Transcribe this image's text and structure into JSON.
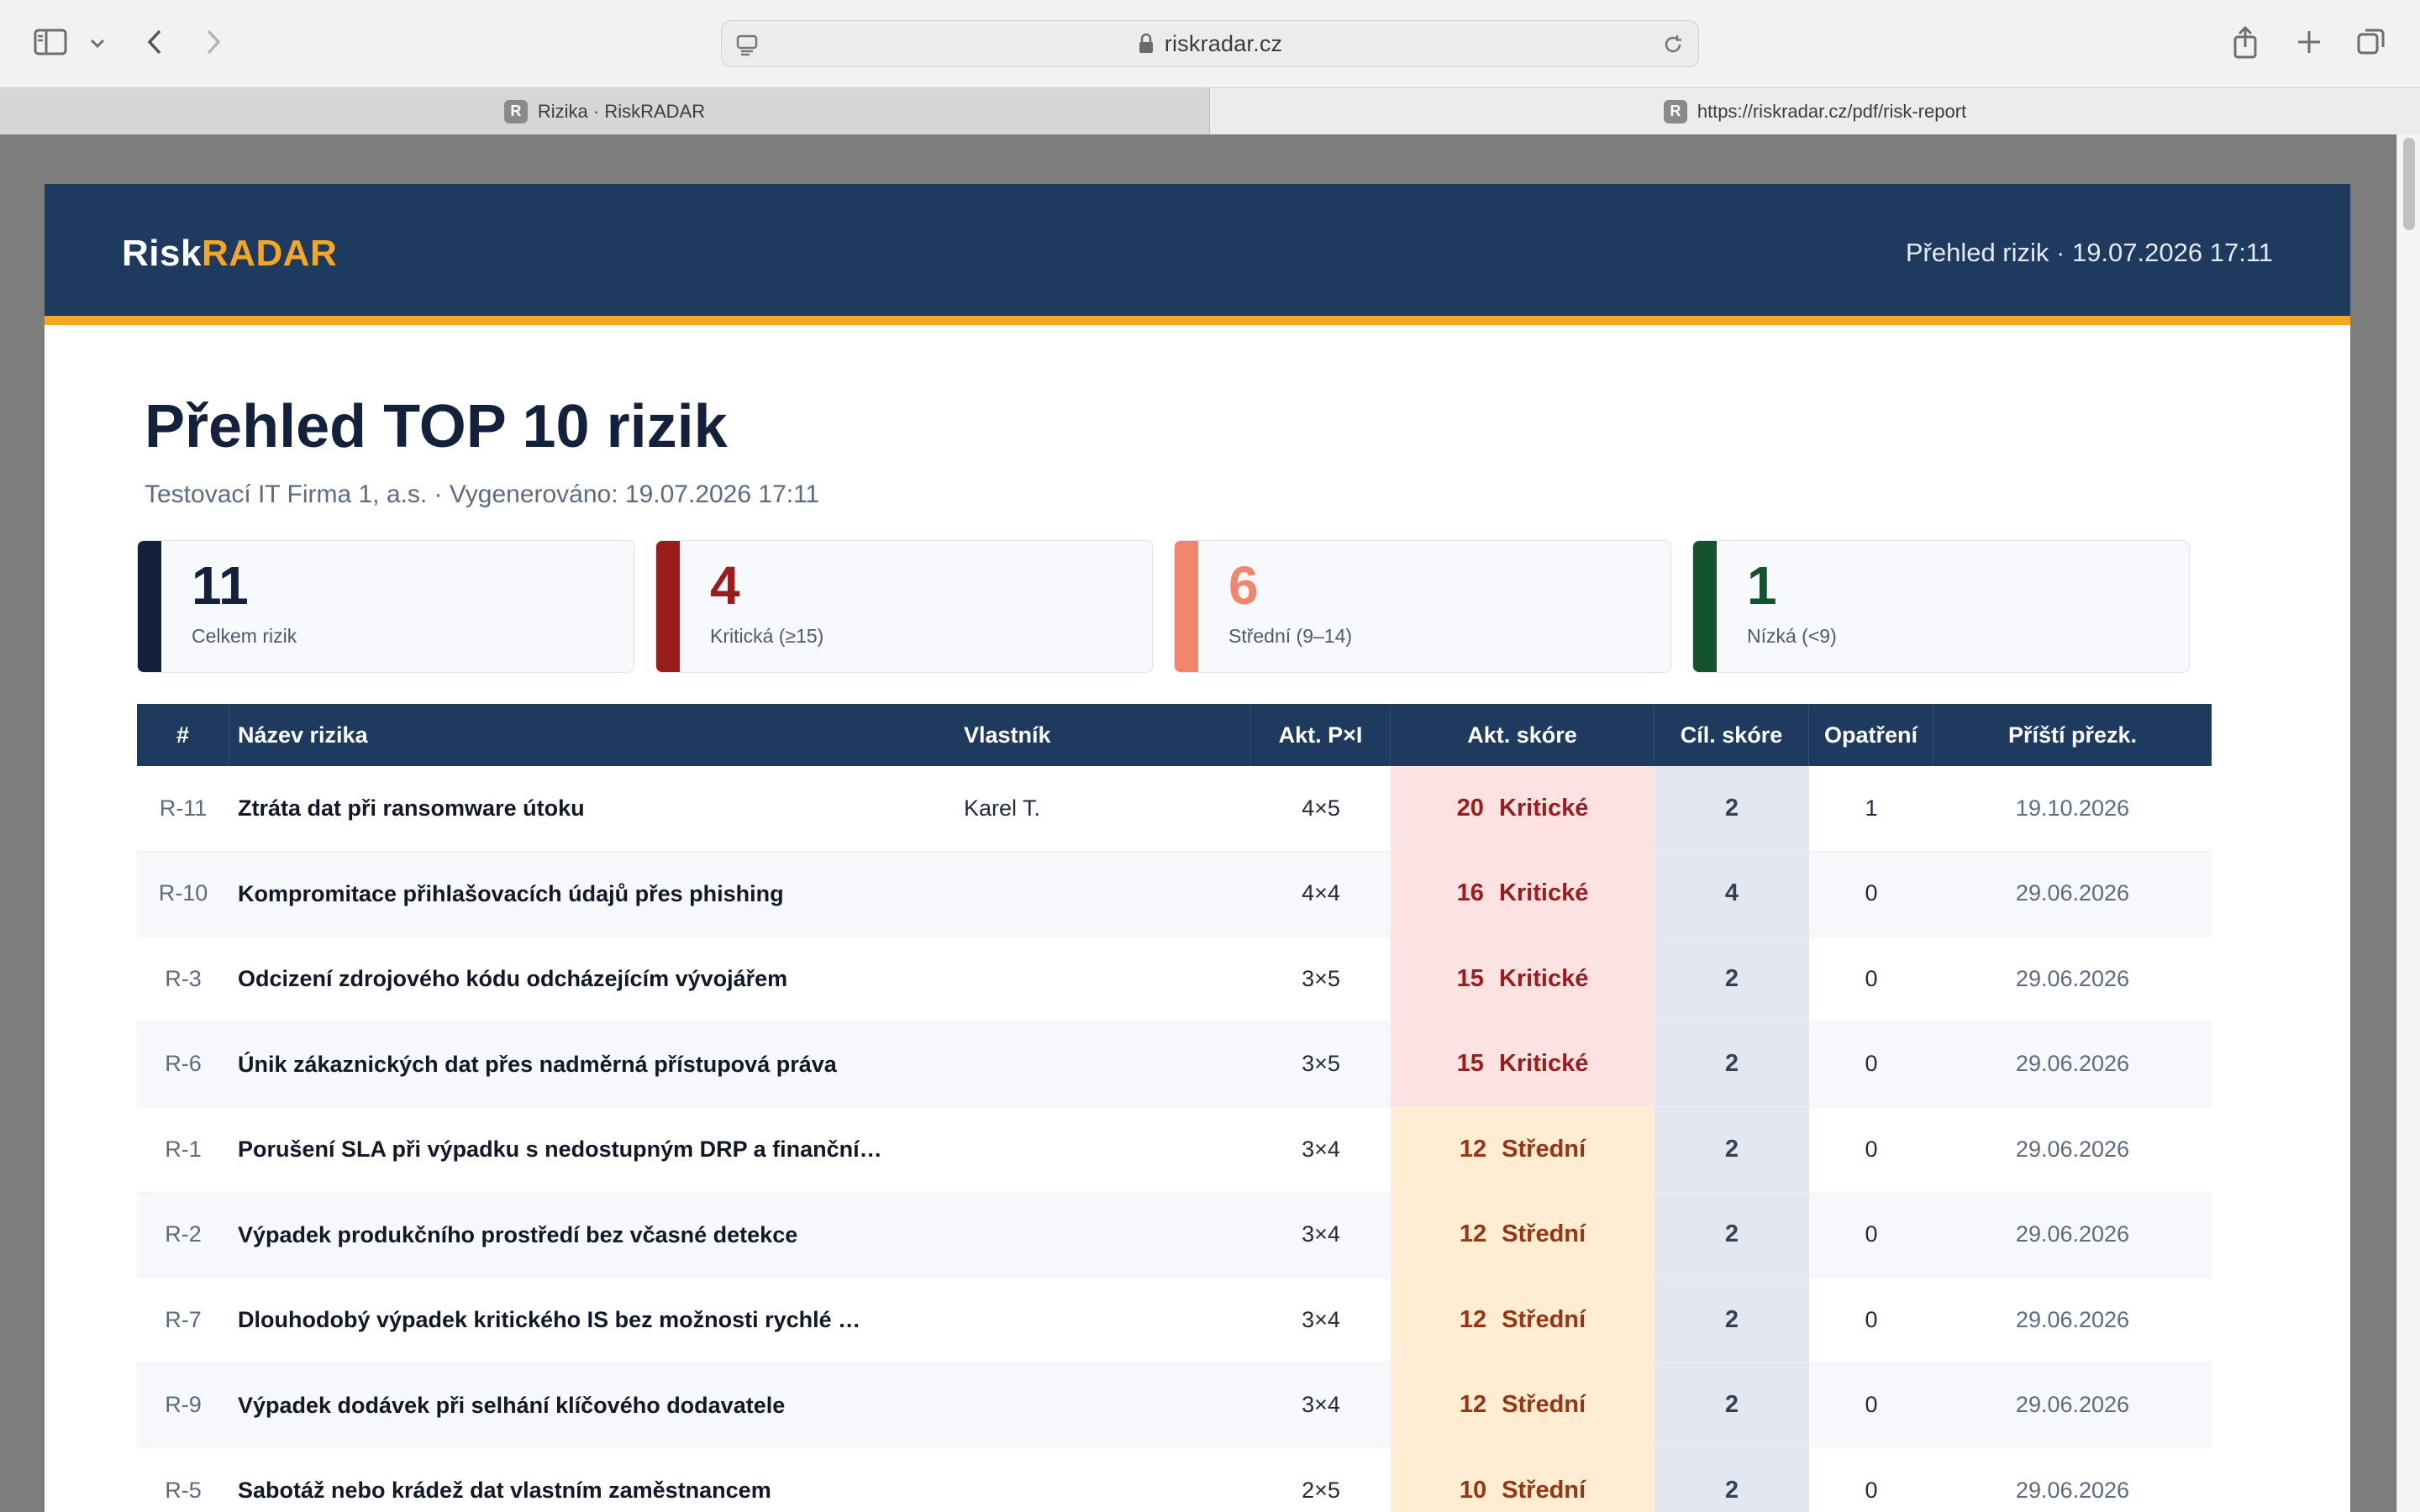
{
  "browser": {
    "url": "riskradar.cz",
    "tabs": [
      {
        "label": "Rizika · RiskRADAR",
        "favicon": "R"
      },
      {
        "label": "https://riskradar.cz/pdf/risk-report",
        "favicon": "R"
      }
    ]
  },
  "report": {
    "logo_part1": "Risk",
    "logo_part2": "RADAR",
    "header_meta": "Přehled rizik · 19.07.2026 17:11",
    "title": "Přehled TOP 10 rizik",
    "subtitle": "Testovací IT Firma 1, a.s.  ·  Vygenerováno: 19.07.2026 17:11"
  },
  "kpis": [
    {
      "value": "11",
      "label": "Celkem rizik",
      "color": "#14213d"
    },
    {
      "value": "4",
      "label": "Kritická (≥15)",
      "color": "#9b1c1c"
    },
    {
      "value": "6",
      "label": "Střední (9–14)",
      "color": "#f2856d"
    },
    {
      "value": "1",
      "label": "Nízká (<9)",
      "color": "#14532d"
    }
  ],
  "table": {
    "headers": [
      "#",
      "Název rizika",
      "Vlastník",
      "Akt. P×I",
      "Akt. skóre",
      "Cíl. skóre",
      "Opatření",
      "Příští přezk."
    ],
    "rows": [
      {
        "id": "R-11",
        "name": "Ztráta dat při ransomware útoku",
        "owner": "Karel T.",
        "pi": "4×5",
        "score": "20",
        "level": "Kritické",
        "target": "2",
        "measures": "1",
        "review": "19.10.2026"
      },
      {
        "id": "R-10",
        "name": "Kompromitace přihlašovacích údajů přes phishing",
        "owner": "",
        "pi": "4×4",
        "score": "16",
        "level": "Kritické",
        "target": "4",
        "measures": "0",
        "review": "29.06.2026"
      },
      {
        "id": "R-3",
        "name": "Odcizení zdrojového kódu odcházejícím vývojářem",
        "owner": "",
        "pi": "3×5",
        "score": "15",
        "level": "Kritické",
        "target": "2",
        "measures": "0",
        "review": "29.06.2026"
      },
      {
        "id": "R-6",
        "name": "Únik zákaznických dat přes nadměrná přístupová práva",
        "owner": "",
        "pi": "3×5",
        "score": "15",
        "level": "Kritické",
        "target": "2",
        "measures": "0",
        "review": "29.06.2026"
      },
      {
        "id": "R-1",
        "name": "Porušení SLA při výpadku s nedostupným DRP a finanční…",
        "owner": "",
        "pi": "3×4",
        "score": "12",
        "level": "Střední",
        "target": "2",
        "measures": "0",
        "review": "29.06.2026"
      },
      {
        "id": "R-2",
        "name": "Výpadek produkčního prostředí bez včasné detekce",
        "owner": "",
        "pi": "3×4",
        "score": "12",
        "level": "Střední",
        "target": "2",
        "measures": "0",
        "review": "29.06.2026"
      },
      {
        "id": "R-7",
        "name": "Dlouhodobý výpadek kritického IS bez možnosti rychlé …",
        "owner": "",
        "pi": "3×4",
        "score": "12",
        "level": "Střední",
        "target": "2",
        "measures": "0",
        "review": "29.06.2026"
      },
      {
        "id": "R-9",
        "name": "Výpadek dodávek při selhání klíčového dodavatele",
        "owner": "",
        "pi": "3×4",
        "score": "12",
        "level": "Střední",
        "target": "2",
        "measures": "0",
        "review": "29.06.2026"
      },
      {
        "id": "R-5",
        "name": "Sabotáž nebo krádež dat vlastním zaměstnancem",
        "owner": "",
        "pi": "2×5",
        "score": "10",
        "level": "Střední",
        "target": "2",
        "measures": "0",
        "review": "29.06.2026"
      }
    ]
  }
}
